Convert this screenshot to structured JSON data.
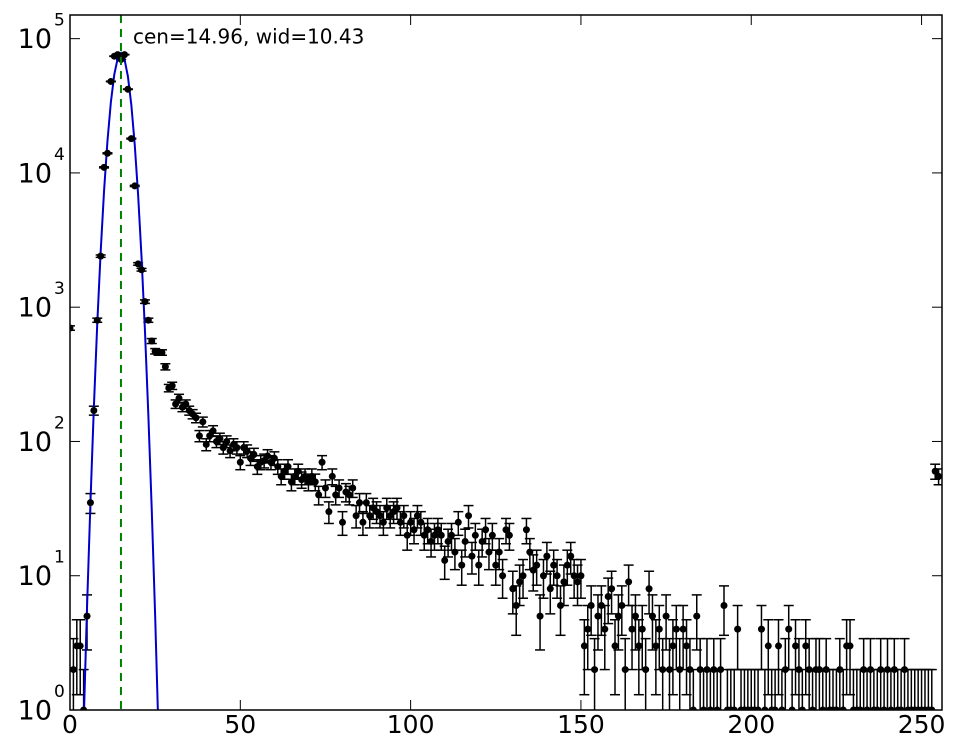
{
  "chart_data": {
    "type": "errorbar",
    "x": [
      0,
      1,
      2,
      3,
      4,
      5,
      6,
      7,
      8,
      9,
      10,
      11,
      12,
      13,
      14,
      15,
      16,
      17,
      18,
      19,
      20,
      21,
      22,
      23,
      24,
      25,
      26,
      27,
      28,
      29,
      30,
      31,
      32,
      33,
      34,
      35,
      36,
      37,
      38,
      39,
      40,
      41,
      42,
      43,
      44,
      45,
      46,
      47,
      48,
      49,
      50,
      51,
      52,
      53,
      54,
      55,
      56,
      57,
      58,
      59,
      60,
      61,
      62,
      63,
      64,
      65,
      66,
      67,
      68,
      69,
      70,
      71,
      72,
      73,
      74,
      75,
      76,
      77,
      78,
      79,
      80,
      81,
      82,
      83,
      84,
      85,
      86,
      87,
      88,
      89,
      90,
      91,
      92,
      93,
      94,
      95,
      96,
      97,
      98,
      99,
      100,
      101,
      102,
      103,
      104,
      105,
      106,
      107,
      108,
      109,
      110,
      111,
      112,
      113,
      114,
      115,
      116,
      117,
      118,
      119,
      120,
      121,
      122,
      123,
      124,
      125,
      126,
      127,
      128,
      129,
      130,
      131,
      132,
      133,
      134,
      135,
      136,
      137,
      138,
      139,
      140,
      141,
      142,
      143,
      144,
      145,
      146,
      147,
      148,
      149,
      150,
      151,
      152,
      153,
      154,
      155,
      156,
      157,
      158,
      159,
      160,
      161,
      162,
      163,
      164,
      165,
      166,
      167,
      168,
      169,
      170,
      171,
      172,
      173,
      174,
      175,
      176,
      177,
      178,
      179,
      180,
      181,
      182,
      183,
      184,
      185,
      186,
      187,
      188,
      189,
      190,
      191,
      192,
      193,
      194,
      195,
      196,
      197,
      198,
      199,
      200,
      201,
      202,
      203,
      204,
      205,
      206,
      207,
      208,
      209,
      210,
      211,
      212,
      213,
      214,
      215,
      216,
      217,
      218,
      219,
      220,
      221,
      222,
      223,
      224,
      225,
      226,
      227,
      228,
      229,
      230,
      231,
      232,
      233,
      234,
      235,
      236,
      237,
      238,
      239,
      240,
      241,
      242,
      243,
      244,
      245,
      246,
      247,
      248,
      249,
      250,
      251,
      252,
      253,
      254,
      255
    ],
    "values": [
      700,
      2,
      3,
      3,
      1,
      5,
      35,
      170,
      800,
      2400,
      11000,
      14000,
      48000,
      74000,
      76000,
      70000,
      76000,
      42000,
      18000,
      8000,
      2100,
      1900,
      1100,
      800,
      560,
      470,
      460,
      460,
      360,
      250,
      260,
      190,
      210,
      180,
      190,
      170,
      160,
      150,
      110,
      140,
      95,
      110,
      120,
      100,
      105,
      90,
      100,
      85,
      95,
      90,
      70,
      90,
      85,
      75,
      80,
      65,
      70,
      72,
      78,
      70,
      75,
      65,
      55,
      60,
      65,
      50,
      55,
      60,
      52,
      55,
      50,
      55,
      50,
      40,
      70,
      45,
      30,
      55,
      40,
      45,
      25,
      42,
      40,
      45,
      28,
      35,
      25,
      35,
      28,
      32,
      30,
      28,
      25,
      32,
      28,
      30,
      32,
      25,
      28,
      20,
      25,
      22,
      28,
      25,
      20,
      22,
      18,
      20,
      22,
      20,
      13,
      18,
      20,
      15,
      25,
      12,
      18,
      28,
      14,
      20,
      12,
      18,
      22,
      15,
      20,
      12,
      15,
      10,
      22,
      20,
      8,
      6,
      9,
      10,
      22,
      15,
      11,
      12,
      5,
      10,
      14,
      8,
      12,
      10,
      6,
      9,
      12,
      14,
      10,
      9,
      10,
      3,
      4,
      6,
      2,
      5,
      6,
      4,
      7,
      8,
      3,
      5,
      6,
      2,
      9,
      4,
      5,
      3,
      4,
      2,
      8,
      5,
      3,
      4,
      2,
      5,
      2,
      3,
      4,
      2,
      4,
      3,
      2,
      1,
      5,
      2,
      1,
      2,
      1,
      2,
      1,
      2,
      6,
      1,
      1,
      1,
      4,
      1,
      1,
      1,
      1,
      1,
      1,
      4,
      1,
      3,
      1,
      1,
      3,
      1,
      2,
      4,
      1,
      3,
      2,
      1,
      3,
      2,
      1,
      2,
      2,
      1,
      2,
      1,
      1,
      1,
      2,
      1,
      3,
      3,
      1,
      1,
      1,
      2,
      1,
      2,
      1,
      1,
      2,
      1,
      2,
      1,
      2,
      1,
      1,
      2,
      1,
      1,
      1,
      1,
      1,
      1,
      1,
      1,
      60,
      55
    ],
    "errors": [
      26.5,
      1.4,
      1.7,
      1.7,
      1,
      2.2,
      5.9,
      13,
      28.3,
      49,
      105,
      118,
      219,
      272,
      276,
      265,
      276,
      205,
      134,
      89,
      45.8,
      43.6,
      33.2,
      28.3,
      23.7,
      21.7,
      21.4,
      21.4,
      19,
      15.8,
      16.1,
      13.8,
      14.5,
      13.4,
      13.8,
      13,
      12.6,
      12.2,
      10.5,
      11.8,
      9.7,
      10.5,
      11,
      10,
      10.2,
      9.5,
      10,
      9.2,
      9.7,
      9.5,
      8.4,
      9.5,
      9.2,
      8.7,
      8.9,
      8.1,
      8.4,
      8.5,
      8.8,
      8.4,
      8.7,
      8.1,
      7.4,
      7.7,
      8.1,
      7.1,
      7.4,
      7.7,
      7.2,
      7.4,
      7.1,
      7.4,
      7.1,
      6.3,
      8.4,
      6.7,
      5.5,
      7.4,
      6.3,
      6.7,
      5,
      6.5,
      6.3,
      6.7,
      5.3,
      5.9,
      5,
      5.9,
      5.3,
      5.7,
      5.5,
      5.3,
      5,
      5.7,
      5.3,
      5.5,
      5.7,
      5,
      5.3,
      4.5,
      5,
      4.7,
      5.3,
      5,
      4.5,
      4.7,
      4.2,
      4.5,
      4.7,
      4.5,
      3.6,
      4.2,
      4.5,
      3.9,
      5,
      3.5,
      4.2,
      5.3,
      3.7,
      4.5,
      3.5,
      4.2,
      4.7,
      3.9,
      4.5,
      3.5,
      3.9,
      3.2,
      4.7,
      4.5,
      2.8,
      2.4,
      3,
      3.2,
      4.7,
      3.9,
      3.3,
      3.5,
      2.2,
      3.2,
      3.7,
      2.8,
      3.5,
      3.2,
      2.4,
      3,
      3.5,
      3.7,
      3.2,
      3,
      3.2,
      1.7,
      2,
      2.4,
      1.4,
      2.2,
      2.4,
      2,
      2.6,
      2.8,
      1.7,
      2.2,
      2.4,
      1.4,
      3,
      2,
      2.2,
      1.7,
      2,
      1.4,
      2.8,
      2.2,
      1.7,
      2,
      1.4,
      2.2,
      1.4,
      1.7,
      2,
      1.4,
      2,
      1.7,
      1.4,
      1,
      2.2,
      1.4,
      1,
      1.4,
      1,
      1.4,
      1,
      1.4,
      2.4,
      1,
      1,
      1,
      2,
      1,
      1,
      1,
      1,
      1,
      1,
      2,
      1,
      1.7,
      1,
      1,
      1.7,
      1,
      1.4,
      2,
      1,
      1.7,
      1.4,
      1,
      1.7,
      1.4,
      1,
      1.4,
      1.4,
      1,
      1.4,
      1,
      1,
      1,
      1.4,
      1,
      1.7,
      1.7,
      1,
      1,
      1,
      1.4,
      1,
      1.4,
      1,
      1,
      1.4,
      1,
      1.4,
      1,
      1.4,
      1,
      1,
      1.4,
      1,
      1,
      1,
      1,
      1,
      1,
      1,
      1,
      7.7,
      7.4
    ],
    "color": "#000000",
    "fit": {
      "x": [
        4,
        5,
        6,
        7,
        8,
        9,
        10,
        11,
        12,
        13,
        14,
        15,
        16,
        17,
        18,
        19,
        20,
        21,
        22,
        23,
        24,
        25,
        26
      ],
      "values": [
        0.77,
        5.8,
        35,
        178,
        752,
        2580,
        7360,
        17300,
        33700,
        54000,
        71400,
        78000,
        70300,
        52300,
        32200,
        16300,
        6830,
        2360,
        672,
        158,
        31,
        5,
        0.65
      ],
      "color": "#0000cc"
    },
    "center": 14.96,
    "center_color": "#008000",
    "annotation": "cen=14.96, wid=10.43",
    "xlim": [
      0,
      256
    ],
    "xticks": [
      0,
      50,
      100,
      150,
      200,
      250
    ],
    "ylim": [
      1,
      150000
    ],
    "yticks": [
      {
        "value": 1,
        "label": "10",
        "exponent": "0"
      },
      {
        "value": 10,
        "label": "10",
        "exponent": "1"
      },
      {
        "value": 100,
        "label": "10",
        "exponent": "2"
      },
      {
        "value": 1000,
        "label": "10",
        "exponent": "3"
      },
      {
        "value": 10000,
        "label": "10",
        "exponent": "4"
      },
      {
        "value": 100000,
        "label": "10",
        "exponent": "5"
      }
    ],
    "log_y": true
  }
}
